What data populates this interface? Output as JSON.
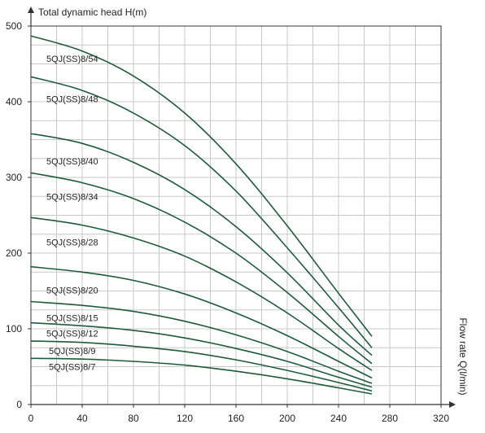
{
  "chart_data": {
    "type": "line",
    "ylabel": "Total dynamic head H(m)",
    "xlabel": "Flow rate Q(l/min)",
    "xlim": [
      0,
      320
    ],
    "ylim": [
      0,
      500
    ],
    "x_ticks": [
      0,
      40,
      80,
      120,
      160,
      200,
      240,
      280,
      320
    ],
    "y_ticks": [
      0,
      100,
      200,
      300,
      400,
      500
    ],
    "grid": true,
    "line_color": "#1f5a3a",
    "series": [
      {
        "name": "5QJ(SS)8/54",
        "x": [
          0,
          40,
          80,
          120,
          160,
          200,
          240,
          266
        ],
        "y": [
          487,
          467,
          434,
          385,
          318,
          236,
          147,
          90
        ]
      },
      {
        "name": "5QJ(SS)8/48",
        "x": [
          0,
          40,
          80,
          120,
          160,
          200,
          240,
          266
        ],
        "y": [
          433,
          415,
          385,
          342,
          282,
          207,
          128,
          75
        ]
      },
      {
        "name": "5QJ(SS)8/40",
        "x": [
          0,
          40,
          80,
          120,
          160,
          200,
          240,
          266
        ],
        "y": [
          358,
          345,
          320,
          284,
          235,
          174,
          105,
          65
        ]
      },
      {
        "name": "5QJ(SS)8/34",
        "x": [
          0,
          40,
          80,
          120,
          160,
          200,
          240,
          266
        ],
        "y": [
          306,
          293,
          272,
          241,
          200,
          148,
          90,
          54
        ]
      },
      {
        "name": "5QJ(SS)8/28",
        "x": [
          0,
          40,
          80,
          120,
          160,
          200,
          240,
          266
        ],
        "y": [
          247,
          237,
          220,
          196,
          162,
          121,
          74,
          45
        ]
      },
      {
        "name": "5QJ(SS)8/20",
        "x": [
          0,
          40,
          80,
          120,
          160,
          200,
          240,
          266
        ],
        "y": [
          182,
          175,
          164,
          146,
          121,
          91,
          57,
          35
        ]
      },
      {
        "name": "5QJ(SS)8/15",
        "x": [
          0,
          40,
          80,
          120,
          160,
          200,
          240,
          266
        ],
        "y": [
          136,
          131,
          123,
          110,
          92,
          70,
          44,
          28
        ]
      },
      {
        "name": "5QJ(SS)8/12",
        "x": [
          0,
          40,
          80,
          120,
          160,
          200,
          240,
          266
        ],
        "y": [
          108,
          104,
          98,
          88,
          74,
          57,
          36,
          23
        ]
      },
      {
        "name": "5QJ(SS)8/9",
        "x": [
          0,
          40,
          80,
          120,
          160,
          200,
          240,
          266
        ],
        "y": [
          84,
          82,
          77,
          70,
          59,
          45,
          29,
          18
        ]
      },
      {
        "name": "5QJ(SS)8/7",
        "x": [
          0,
          40,
          80,
          120,
          160,
          200,
          240,
          266
        ],
        "y": [
          61,
          60,
          57,
          52,
          44,
          34,
          22,
          14
        ]
      }
    ]
  }
}
